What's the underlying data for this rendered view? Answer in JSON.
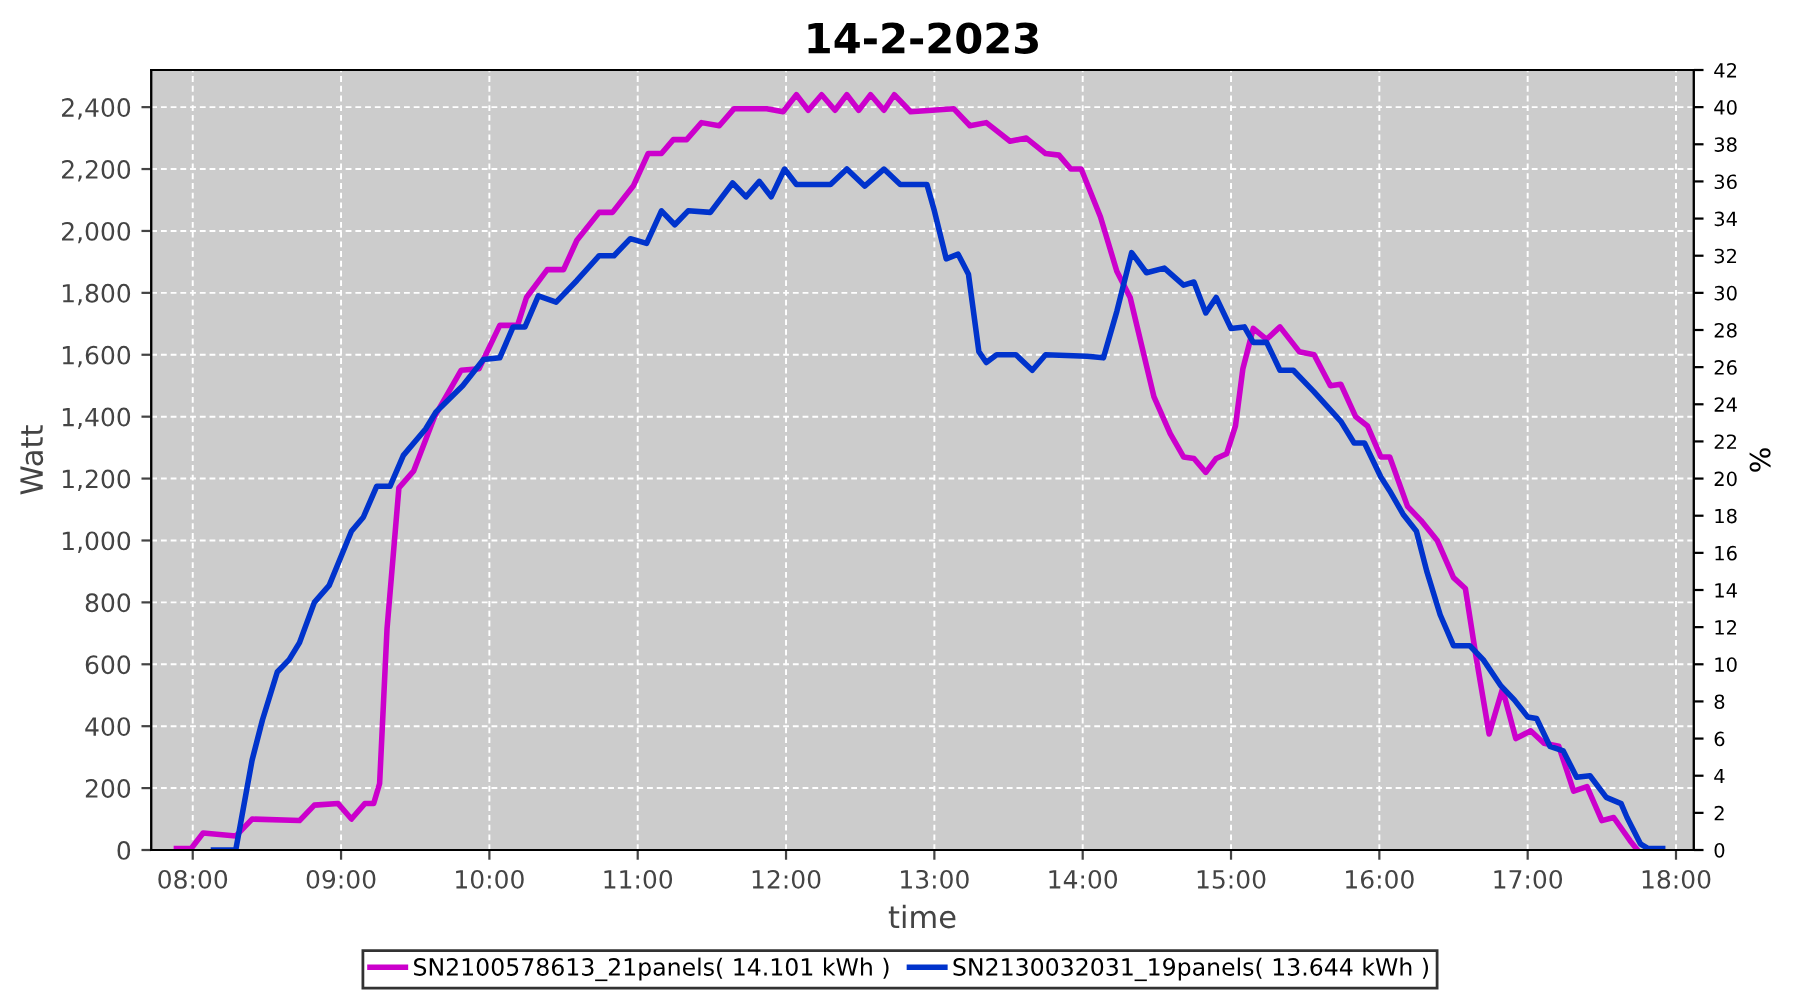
{
  "chart_data": {
    "type": "line",
    "title": "14-2-2023",
    "xlabel": "time",
    "ylabel": "Watt",
    "y2label": "%",
    "xlim": [
      7.72,
      18.12
    ],
    "xticks": [
      {
        "value": 8,
        "label": "08:00"
      },
      {
        "value": 9,
        "label": "09:00"
      },
      {
        "value": 10,
        "label": "10:00"
      },
      {
        "value": 11,
        "label": "11:00"
      },
      {
        "value": 12,
        "label": "12:00"
      },
      {
        "value": 13,
        "label": "13:00"
      },
      {
        "value": 14,
        "label": "14:00"
      },
      {
        "value": 15,
        "label": "15:00"
      },
      {
        "value": 16,
        "label": "16:00"
      },
      {
        "value": 17,
        "label": "17:00"
      },
      {
        "value": 18,
        "label": "18:00"
      }
    ],
    "ylim": [
      0,
      2520
    ],
    "yticks": [
      {
        "value": 0,
        "label": "0"
      },
      {
        "value": 200,
        "label": "200"
      },
      {
        "value": 400,
        "label": "400"
      },
      {
        "value": 600,
        "label": "600"
      },
      {
        "value": 800,
        "label": "800"
      },
      {
        "value": 1000,
        "label": "1,000"
      },
      {
        "value": 1200,
        "label": "1,200"
      },
      {
        "value": 1400,
        "label": "1,400"
      },
      {
        "value": 1600,
        "label": "1,600"
      },
      {
        "value": 1800,
        "label": "1,800"
      },
      {
        "value": 2000,
        "label": "2,000"
      },
      {
        "value": 2200,
        "label": "2,200"
      },
      {
        "value": 2400,
        "label": "2,400"
      }
    ],
    "y2lim": [
      0,
      42
    ],
    "y2ticks": [
      0,
      2,
      4,
      6,
      8,
      10,
      12,
      14,
      16,
      18,
      20,
      22,
      24,
      26,
      28,
      30,
      32,
      34,
      36,
      38,
      40,
      42
    ],
    "grid": true,
    "legend": "bottom",
    "line_style": "solid",
    "series": [
      {
        "name": "SN2100578613_21panels( 14.101 kWh )",
        "color": "#cc00cc",
        "x": [
          7.89,
          7.99,
          8.07,
          8.29,
          8.4,
          8.72,
          8.82,
          8.98,
          9.07,
          9.16,
          9.22,
          9.26,
          9.31,
          9.39,
          9.49,
          9.63,
          9.81,
          9.93,
          10.07,
          10.19,
          10.25,
          10.39,
          10.5,
          10.59,
          10.74,
          10.83,
          10.97,
          11.07,
          11.16,
          11.24,
          11.33,
          11.43,
          11.55,
          11.65,
          11.87,
          11.98,
          12.07,
          12.15,
          12.24,
          12.33,
          12.41,
          12.49,
          12.57,
          12.66,
          12.73,
          12.84,
          13.13,
          13.24,
          13.35,
          13.51,
          13.62,
          13.75,
          13.84,
          13.92,
          13.99,
          14.12,
          14.23,
          14.32,
          14.48,
          14.59,
          14.68,
          14.75,
          14.83,
          14.9,
          14.97,
          15.03,
          15.08,
          15.15,
          15.24,
          15.33,
          15.46,
          15.56,
          15.67,
          15.74,
          15.84,
          15.92,
          16.01,
          16.07,
          16.19,
          16.28,
          16.39,
          16.5,
          16.58,
          16.65,
          16.74,
          16.83,
          16.92,
          17.02,
          17.11,
          17.21,
          17.31,
          17.4,
          17.5,
          17.58,
          17.69,
          17.74
        ],
        "values": [
          5,
          5,
          55,
          45,
          100,
          95,
          145,
          150,
          100,
          150,
          150,
          215,
          715,
          1170,
          1225,
          1400,
          1550,
          1555,
          1695,
          1695,
          1785,
          1875,
          1875,
          1970,
          2060,
          2060,
          2145,
          2250,
          2250,
          2295,
          2295,
          2350,
          2340,
          2395,
          2395,
          2385,
          2440,
          2390,
          2440,
          2390,
          2440,
          2390,
          2440,
          2390,
          2440,
          2385,
          2395,
          2340,
          2350,
          2290,
          2300,
          2250,
          2245,
          2200,
          2200,
          2045,
          1870,
          1785,
          1465,
          1345,
          1270,
          1265,
          1220,
          1265,
          1280,
          1370,
          1555,
          1685,
          1650,
          1690,
          1610,
          1600,
          1500,
          1505,
          1400,
          1370,
          1270,
          1270,
          1110,
          1065,
          1000,
          880,
          845,
          630,
          375,
          520,
          360,
          385,
          345,
          335,
          190,
          205,
          95,
          105,
          30,
          0
        ]
      },
      {
        "name": "SN2130032031_19panels( 13.644 kWh )",
        "color": "#0033cc",
        "x": [
          8.14,
          8.29,
          8.4,
          8.47,
          8.57,
          8.65,
          8.72,
          8.82,
          8.92,
          9.07,
          9.15,
          9.24,
          9.33,
          9.42,
          9.57,
          9.64,
          9.82,
          9.96,
          10.07,
          10.16,
          10.24,
          10.33,
          10.45,
          10.59,
          10.74,
          10.84,
          10.95,
          11.06,
          11.16,
          11.25,
          11.34,
          11.49,
          11.64,
          11.73,
          11.82,
          11.9,
          11.99,
          12.07,
          12.3,
          12.41,
          12.53,
          12.66,
          12.77,
          12.95,
          13.0,
          13.08,
          13.16,
          13.23,
          13.3,
          13.35,
          13.42,
          13.55,
          13.66,
          13.75,
          14.03,
          14.14,
          14.23,
          14.33,
          14.43,
          14.55,
          14.68,
          14.75,
          14.83,
          14.9,
          15.0,
          15.09,
          15.15,
          15.24,
          15.33,
          15.42,
          15.56,
          15.74,
          15.83,
          15.9,
          16.01,
          16.07,
          16.16,
          16.25,
          16.32,
          16.41,
          16.5,
          16.61,
          16.7,
          16.82,
          16.91,
          17.0,
          17.06,
          17.15,
          17.24,
          17.33,
          17.42,
          17.53,
          17.63,
          17.67,
          17.76,
          17.81,
          17.91
        ],
        "values": [
          0,
          0,
          290,
          420,
          575,
          615,
          670,
          800,
          855,
          1030,
          1075,
          1175,
          1175,
          1275,
          1360,
          1415,
          1500,
          1585,
          1590,
          1690,
          1690,
          1790,
          1770,
          1840,
          1920,
          1920,
          1975,
          1960,
          2065,
          2020,
          2065,
          2060,
          2155,
          2110,
          2160,
          2110,
          2200,
          2150,
          2150,
          2200,
          2145,
          2200,
          2150,
          2150,
          2065,
          1910,
          1925,
          1860,
          1610,
          1575,
          1600,
          1600,
          1550,
          1600,
          1595,
          1590,
          1740,
          1930,
          1865,
          1880,
          1825,
          1835,
          1735,
          1785,
          1685,
          1690,
          1640,
          1640,
          1550,
          1550,
          1480,
          1385,
          1315,
          1315,
          1205,
          1160,
          1085,
          1030,
          900,
          760,
          660,
          660,
          615,
          530,
          485,
          430,
          425,
          335,
          320,
          235,
          240,
          170,
          150,
          105,
          20,
          5,
          5
        ]
      }
    ]
  }
}
